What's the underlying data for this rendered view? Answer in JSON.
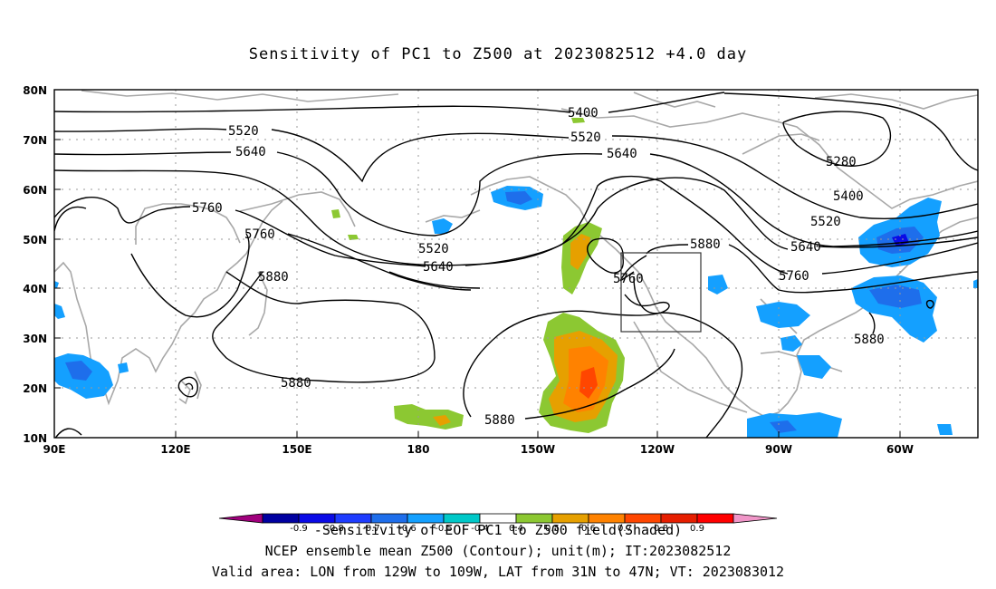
{
  "title": "Sensitivity of PC1 to Z500 at 2023082512 +4.0 day",
  "map": {
    "lat_ticks": [
      "80N",
      "70N",
      "60N",
      "50N",
      "40N",
      "30N",
      "20N",
      "10N"
    ],
    "lon_ticks": [
      "90E",
      "120E",
      "150E",
      "180",
      "150W",
      "120W",
      "90W",
      "60W"
    ],
    "contour_labels": [
      {
        "text": "5400",
        "id": "c5400a"
      },
      {
        "text": "5520",
        "id": "c5520a"
      },
      {
        "text": "5520",
        "id": "c5520b"
      },
      {
        "text": "5640",
        "id": "c5640a"
      },
      {
        "text": "5640",
        "id": "c5640b"
      },
      {
        "text": "5760",
        "id": "c5760a"
      },
      {
        "text": "5760",
        "id": "c5760b"
      },
      {
        "text": "5880",
        "id": "c5880a"
      },
      {
        "text": "5520",
        "id": "c5520c"
      },
      {
        "text": "5640",
        "id": "c5640c"
      },
      {
        "text": "5880",
        "id": "c5880b"
      },
      {
        "text": "5760",
        "id": "c5760c"
      },
      {
        "text": "5280",
        "id": "c5280"
      },
      {
        "text": "5400",
        "id": "c5400b"
      },
      {
        "text": "5520",
        "id": "c5520d"
      },
      {
        "text": "5640",
        "id": "c5640d"
      },
      {
        "text": "5760",
        "id": "c5760d"
      },
      {
        "text": "5880",
        "id": "c5880c"
      },
      {
        "text": "5880",
        "id": "c5880d"
      },
      {
        "text": "5880",
        "id": "c5880e"
      }
    ],
    "valid_box": {
      "lon_from": "129W",
      "lon_to": "109W",
      "lat_from": "31N",
      "lat_to": "47N"
    }
  },
  "colorbar": {
    "labels": [
      "-0.9",
      "-0.8",
      "-0.7",
      "-0.6",
      "-0.5",
      "-0.4",
      "0.4",
      "0.5",
      "0.6",
      "0.7",
      "0.8",
      "0.9"
    ],
    "colors": [
      "#a0007d",
      "#0000a0",
      "#0a0ae6",
      "#1e3cff",
      "#1e6eeb",
      "#14a0ff",
      "#00c8c8",
      "#ffffff",
      "#8cc832",
      "#e6a000",
      "#ff8200",
      "#ff4600",
      "#e61e00",
      "#ff0000",
      "#f096c8"
    ]
  },
  "notes": {
    "line1": "-Sensitivity of EOF PC1 to Z500 field(Shaded)",
    "line2": "NCEP ensemble mean Z500 (Contour); unit(m); IT:2023082512",
    "line3": "Valid area: LON from 129W to 109W, LAT from 31N to 47N; VT: 2023083012"
  }
}
